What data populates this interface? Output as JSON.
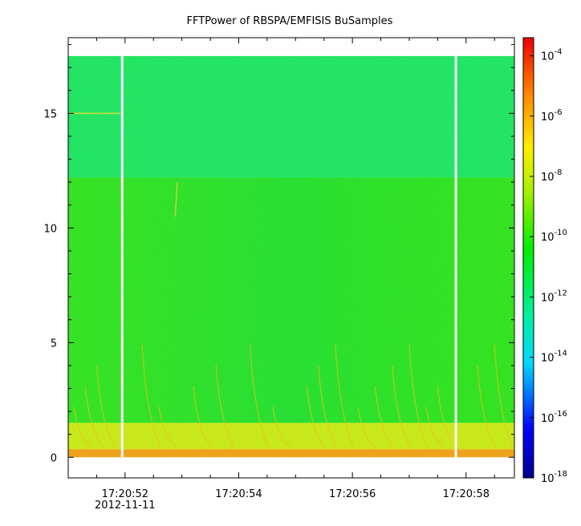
{
  "chart_data": {
    "type": "heatmap",
    "title": "FFTPower of RBSPA/EMFISIS  BuSamples",
    "xlabel": "",
    "ylabel": "",
    "x_ticks": [
      {
        "value": 51,
        "label": "17:20:52",
        "sublabel": "2012-11-11"
      },
      {
        "value": 53,
        "label": "17:20:54",
        "sublabel": ""
      },
      {
        "value": 55,
        "label": "17:20:56",
        "sublabel": ""
      },
      {
        "value": 57,
        "label": "17:20:58",
        "sublabel": ""
      }
    ],
    "xlim": [
      50.0,
      57.85
    ],
    "y_ticks": [
      0,
      5,
      10,
      15
    ],
    "ylim": [
      -0.9,
      18.3
    ],
    "data_ymax": 17.5,
    "colorbar": {
      "scale": "log",
      "range_exp": [
        -18,
        -3.4
      ],
      "ticks": [
        {
          "base": "10",
          "exp": "-4"
        },
        {
          "base": "10",
          "exp": "-6"
        },
        {
          "base": "10",
          "exp": "-8"
        },
        {
          "base": "10",
          "exp": "-10"
        },
        {
          "base": "10",
          "exp": "-12"
        },
        {
          "base": "10",
          "exp": "-14"
        },
        {
          "base": "10",
          "exp": "-16"
        },
        {
          "base": "10",
          "exp": "-18"
        }
      ]
    },
    "data_gaps_x": [
      50.95,
      56.82
    ],
    "bands": [
      {
        "name": "upper",
        "ymin": 12.2,
        "ymax": 17.5,
        "color": "#1ee464"
      },
      {
        "name": "middle",
        "ymin": 1.5,
        "ymax": 12.2,
        "color": "#2ee21a"
      },
      {
        "name": "lower",
        "ymin": 0.35,
        "ymax": 1.5,
        "color": "#c8e81a"
      },
      {
        "name": "base",
        "ymin": 0.0,
        "ymax": 0.35,
        "color": "#f0a01a"
      }
    ],
    "colors": {
      "background": "#ffffff",
      "gap": "#ffffff"
    }
  }
}
